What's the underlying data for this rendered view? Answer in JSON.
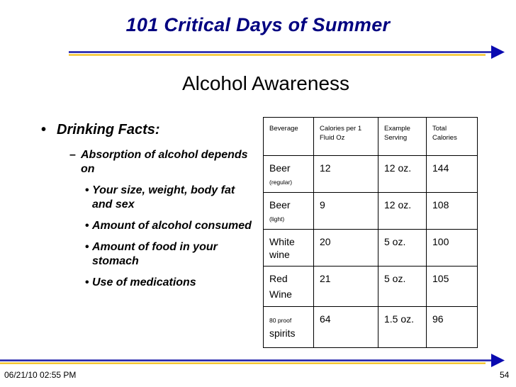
{
  "slide": {
    "title": "101 Critical Days of Summer",
    "subtitle": "Alcohol Awareness",
    "rule_colors": {
      "line": "#1a1aa8",
      "accent": "#f2b800",
      "arrow": "#0a0ab0"
    }
  },
  "bullets": {
    "main": "Drinking Facts:",
    "sub": "Absorption of alcohol depends on",
    "items": [
      "Your size, weight, body fat and sex",
      "Amount of alcohol consumed",
      "Amount of food in your stomach",
      "Use of medications"
    ]
  },
  "table": {
    "headers": [
      "Beverage",
      "Calories per 1 Fluid Oz",
      "Example Serving",
      "Total Calories"
    ],
    "rows": [
      {
        "bev_pre": "",
        "bev": "Beer",
        "bev_note": "(regular)",
        "cal": "12",
        "serving": "12 oz.",
        "total": "144"
      },
      {
        "bev_pre": "",
        "bev": "Beer",
        "bev_note": "(light)",
        "cal": "9",
        "serving": "12 oz.",
        "total": "108"
      },
      {
        "bev_pre": "",
        "bev": "White wine",
        "bev_note": "",
        "cal": "20",
        "serving": "5 oz.",
        "total": "100"
      },
      {
        "bev_pre": "",
        "bev": "Red",
        "bev_note": "Wine",
        "cal": "21",
        "serving": "5 oz.",
        "total": "105"
      },
      {
        "bev_pre": "80 proof",
        "bev": "spirits",
        "bev_note": "",
        "cal": "64",
        "serving": "1.5 oz.",
        "total": "96"
      }
    ]
  },
  "footer": {
    "date": "06/21/10 02:55 PM",
    "page": "54"
  }
}
